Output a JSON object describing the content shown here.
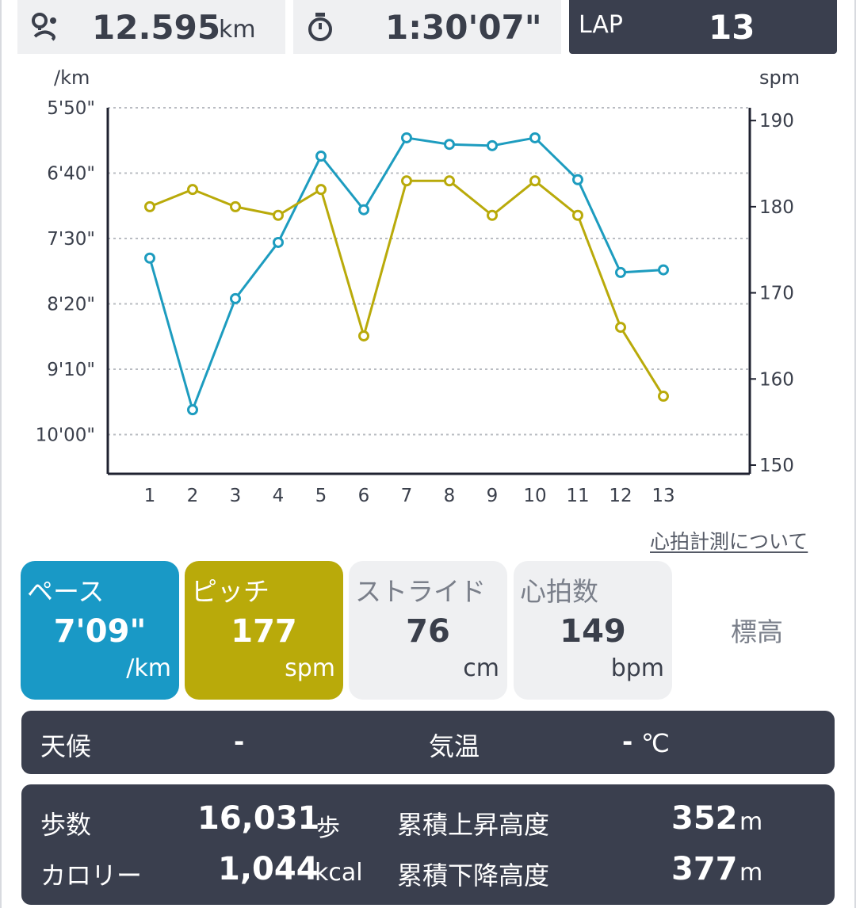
{
  "summary": {
    "distance": "12.595",
    "distance_unit": "km",
    "time": "1:30'07\"",
    "lap_label": "LAP",
    "lap_value": "13"
  },
  "icons": {
    "distance": "route-pin-icon",
    "time": "stopwatch-icon"
  },
  "chart_data": {
    "type": "line",
    "title": "",
    "ylabel_left": "/km",
    "ylabel_right": "spm",
    "x": [
      1,
      2,
      3,
      4,
      5,
      6,
      7,
      8,
      9,
      10,
      11,
      12,
      13
    ],
    "x_tick_labels": [
      "1",
      "2",
      "3",
      "4",
      "5",
      "6",
      "7",
      "8",
      "9",
      "10",
      "11",
      "12",
      "13"
    ],
    "left_axis": {
      "ticks": [
        "5'50\"",
        "6'40\"",
        "7'30\"",
        "8'20\"",
        "9'10\"",
        "10'00\""
      ],
      "tick_seconds": [
        350,
        400,
        450,
        500,
        550,
        600
      ],
      "range_seconds": [
        350,
        630
      ]
    },
    "right_axis": {
      "ticks": [
        "190",
        "180",
        "170",
        "160",
        "150"
      ],
      "tick_values": [
        190,
        180,
        170,
        160,
        150
      ],
      "range": [
        150,
        192.5
      ]
    },
    "series": [
      {
        "color": "#1d9cbf",
        "axis": "left",
        "unit": "sec_per_km",
        "values": [
          465,
          581,
          496,
          453,
          387,
          428,
          373,
          378,
          379,
          373,
          405,
          476,
          474
        ]
      },
      {
        "color": "#b9aa0a",
        "axis": "right",
        "unit": "spm",
        "values": [
          180,
          182,
          180,
          179,
          182,
          165,
          183,
          183,
          179,
          183,
          179,
          166,
          158
        ]
      }
    ],
    "grid": true,
    "legend": "none"
  },
  "link_label": "心拍計測について",
  "metrics": [
    {
      "label": "ペース",
      "value": "7'09\"",
      "unit": "/km",
      "color": "#1999c6"
    },
    {
      "label": "ピッチ",
      "value": "177",
      "unit": "spm",
      "color": "#b9aa0a"
    },
    {
      "label": "ストライド",
      "value": "76",
      "unit": "cm"
    },
    {
      "label": "心拍数",
      "value": "149",
      "unit": "bpm"
    },
    {
      "label": "標高"
    }
  ],
  "weather": {
    "weather_label": "天候",
    "weather_value": "-",
    "temp_label": "気温",
    "temp_value": "-",
    "temp_unit": "℃"
  },
  "stats": {
    "steps_label": "歩数",
    "steps_value": "16,031",
    "steps_unit": "歩",
    "calorie_label": "カロリー",
    "calorie_value": "1,044",
    "calorie_unit": "kcal",
    "ascent_label": "累積上昇高度",
    "ascent_value": "352",
    "ascent_unit": "m",
    "descent_label": "累積下降高度",
    "descent_value": "377",
    "descent_unit": "m"
  }
}
